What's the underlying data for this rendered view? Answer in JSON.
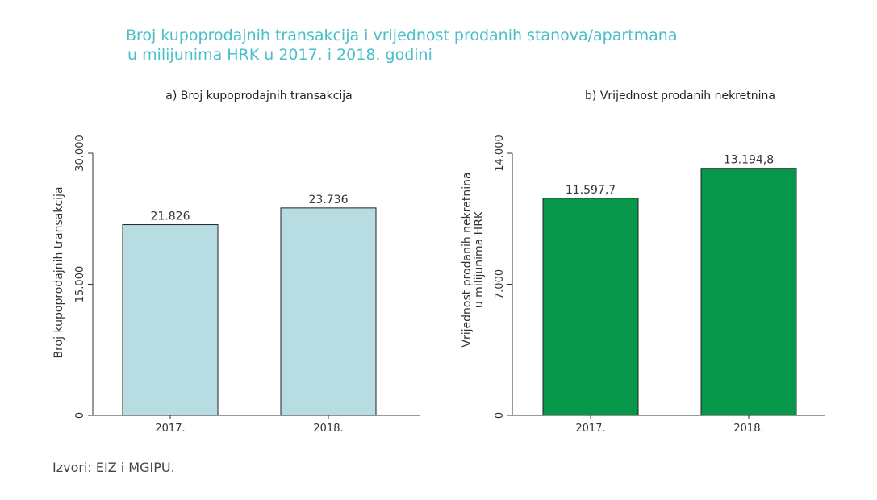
{
  "title": {
    "line1": "Broj kupoprodajnih transakcija i vrijednost prodanih stanova/apartmana",
    "line2": "u milijunima HRK u 2017. i 2018. godini",
    "color": "#4bbfc9"
  },
  "source": "Izvori: EIZ i MGIPU.",
  "chart_data": [
    {
      "type": "bar",
      "title": "a) Broj kupoprodajnih transakcija",
      "categories": [
        "2017.",
        "2018."
      ],
      "values": [
        21826,
        23736
      ],
      "data_labels": [
        "21.826",
        "23.736"
      ],
      "ylabel": "Broj kupoprodajnih transakcija",
      "ylim": [
        0,
        30000
      ],
      "yticks": [
        0,
        15000,
        30000
      ],
      "ytick_labels": [
        "0",
        "15.000",
        "30.000"
      ],
      "bar_color": "#b7dce2",
      "grid": false
    },
    {
      "type": "bar",
      "title": "b) Vrijednost prodanih nekretnina",
      "categories": [
        "2017.",
        "2018."
      ],
      "values": [
        11597.7,
        13194.8
      ],
      "data_labels": [
        "11.597,7",
        "13.194,8"
      ],
      "ylabel_lines": [
        "Vrijednost prodanih nekretnina",
        "u milijunima HRK"
      ],
      "ylim": [
        0,
        14000
      ],
      "yticks": [
        0,
        7000,
        14000
      ],
      "ytick_labels": [
        "0",
        "7.000",
        "14.000"
      ],
      "bar_color": "#07974b",
      "grid": false
    }
  ]
}
